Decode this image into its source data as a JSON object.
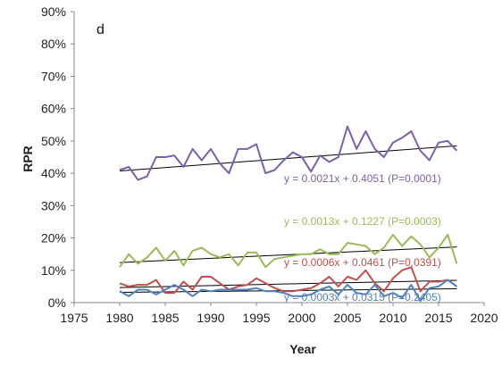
{
  "chart_data": {
    "type": "line",
    "panel_label": "d",
    "xlabel": "Year",
    "ylabel": "RPR",
    "xlim": [
      1975,
      2020
    ],
    "xticks": [
      1975,
      1980,
      1985,
      1990,
      1995,
      2000,
      2005,
      2010,
      2015,
      2020
    ],
    "ylim": [
      0,
      0.9
    ],
    "yticks": [
      0,
      0.1,
      0.2,
      0.3,
      0.4,
      0.5,
      0.6,
      0.7,
      0.8,
      0.9
    ],
    "ytick_labels": [
      "0%",
      "10%",
      "20%",
      "30%",
      "40%",
      "50%",
      "60%",
      "70%",
      "80%",
      "90%"
    ],
    "grid": false,
    "x": [
      1980,
      1981,
      1982,
      1983,
      1984,
      1985,
      1986,
      1987,
      1988,
      1989,
      1990,
      1991,
      1992,
      1993,
      1994,
      1995,
      1996,
      1997,
      1998,
      1999,
      2000,
      2001,
      2002,
      2003,
      2004,
      2005,
      2006,
      2007,
      2008,
      2009,
      2010,
      2011,
      2012,
      2013,
      2014,
      2015,
      2016,
      2017
    ],
    "series": [
      {
        "color": "#7b60a8",
        "values": [
          0.41,
          0.42,
          0.38,
          0.39,
          0.45,
          0.45,
          0.455,
          0.42,
          0.475,
          0.44,
          0.475,
          0.43,
          0.4,
          0.475,
          0.475,
          0.49,
          0.4,
          0.41,
          0.44,
          0.465,
          0.45,
          0.405,
          0.455,
          0.435,
          0.45,
          0.545,
          0.475,
          0.53,
          0.475,
          0.45,
          0.495,
          0.51,
          0.53,
          0.47,
          0.44,
          0.495,
          0.5,
          0.47
        ],
        "trend": {
          "slope": 0.0021,
          "intercept": 0.4051,
          "x0": 1980,
          "x1": 2017
        },
        "equation": "y = 0.0021x + 0.4051  (P=0.0001)"
      },
      {
        "color": "#9bbb59",
        "values": [
          0.11,
          0.15,
          0.12,
          0.14,
          0.17,
          0.13,
          0.16,
          0.115,
          0.16,
          0.17,
          0.15,
          0.14,
          0.15,
          0.115,
          0.155,
          0.155,
          0.11,
          0.135,
          0.14,
          0.145,
          0.15,
          0.15,
          0.165,
          0.15,
          0.15,
          0.185,
          0.18,
          0.175,
          0.15,
          0.17,
          0.21,
          0.175,
          0.205,
          0.18,
          0.14,
          0.17,
          0.21,
          0.12
        ],
        "trend": {
          "slope": 0.0013,
          "intercept": 0.1227,
          "x0": 1980,
          "x1": 2017
        },
        "equation": "y = 0.0013x + 0.1227  (P=0.0003)"
      },
      {
        "color": "#c0504d",
        "values": [
          0.06,
          0.05,
          0.055,
          0.055,
          0.07,
          0.03,
          0.03,
          0.065,
          0.04,
          0.08,
          0.08,
          0.06,
          0.04,
          0.05,
          0.055,
          0.075,
          0.06,
          0.045,
          0.035,
          0.035,
          0.04,
          0.045,
          0.06,
          0.08,
          0.05,
          0.08,
          0.07,
          0.1,
          0.06,
          0.035,
          0.075,
          0.1,
          0.11,
          0.035,
          0.065,
          0.065,
          0.07,
          0.05
        ],
        "trend": {
          "slope": 0.0006,
          "intercept": 0.0461,
          "x0": 1980,
          "x1": 2017
        },
        "equation": "y = 0.0006x + 0.0461  (P=0.0391)"
      },
      {
        "color": "#4f81bd",
        "values": [
          0.035,
          0.02,
          0.04,
          0.04,
          0.025,
          0.04,
          0.055,
          0.04,
          0.02,
          0.04,
          0.035,
          0.04,
          0.04,
          0.04,
          0.04,
          0.045,
          0.035,
          0.035,
          0.03,
          0.02,
          0.02,
          0.025,
          0.04,
          0.05,
          0.025,
          0.055,
          0.03,
          0.025,
          0.055,
          0.02,
          0.03,
          0.015,
          0.055,
          0.005,
          0.045,
          0.05,
          0.07,
          0.05
        ],
        "trend": {
          "slope": 0.0003,
          "intercept": 0.0315,
          "x0": 1980,
          "x1": 2017
        },
        "equation": "y = 0.0003x + 0.0315  (P=0.2405)"
      }
    ]
  }
}
